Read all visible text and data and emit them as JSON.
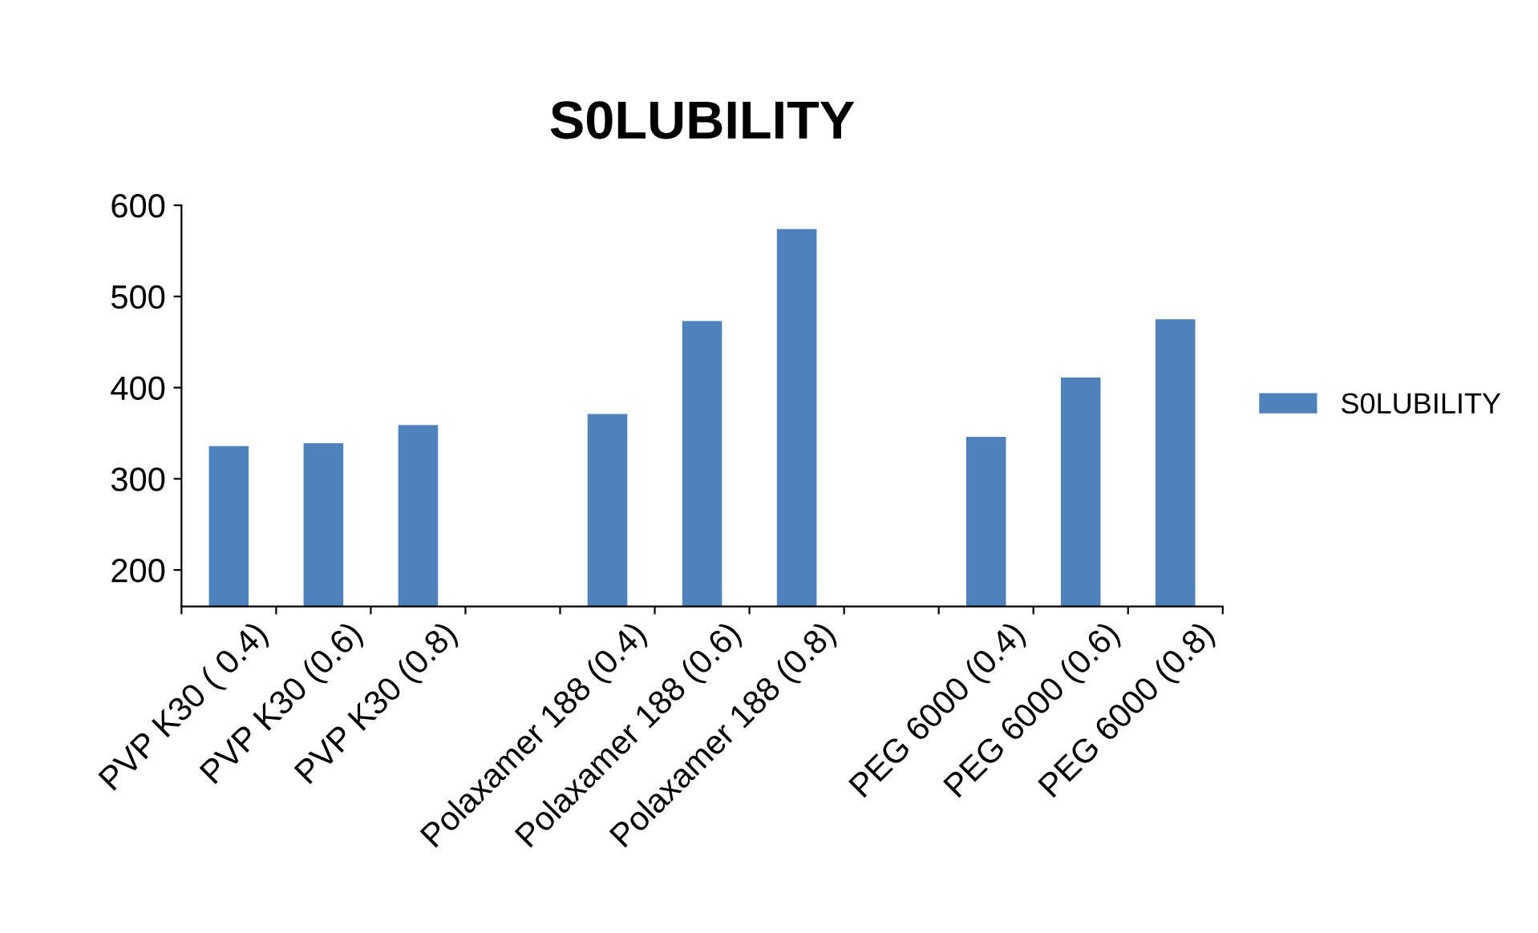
{
  "chart_data": {
    "type": "bar",
    "title": "S0LUBILITY",
    "categories": [
      "PVP K30 ( 0.4)",
      "PVP K30 (0.6)",
      "PVP K30 (0.8)",
      null,
      "Polaxamer 188 (0.4)",
      "Polaxamer 188 (0.6)",
      "Polaxamer 188 (0.8)",
      null,
      "PEG 6000 (0.4)",
      "PEG 6000 (0.6)",
      "PEG 6000 (0.8)"
    ],
    "series": [
      {
        "name": "S0LUBILITY",
        "color": "#4f81bd",
        "values": [
          336,
          339,
          359,
          null,
          371,
          473,
          574,
          null,
          346,
          411,
          475
        ]
      }
    ],
    "ylim": [
      160,
      600
    ],
    "yticks": [
      200,
      300,
      400,
      500,
      600
    ],
    "grid": false,
    "legend": "right"
  }
}
